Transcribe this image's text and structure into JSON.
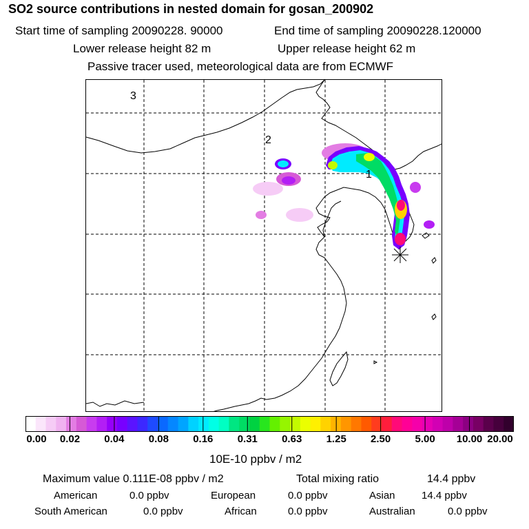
{
  "header": {
    "title": "SO2 source contributions in nested domain for gosan_200902",
    "start_label": "Start time of sampling 20090228. 90000",
    "end_label": "End time of sampling 20090228.120000",
    "lower_label": "Lower release height   82 m",
    "upper_label": "Upper release height   62 m",
    "note": "Passive tracer used, meteorological data are from ECMWF"
  },
  "map": {
    "labels": [
      "3",
      "2",
      "1"
    ]
  },
  "colorbar": {
    "ticks": [
      "0.00",
      "0.02",
      "0.04",
      "0.08",
      "0.16",
      "0.31",
      "0.63",
      "1.25",
      "2.50",
      "5.00",
      "10.00",
      "20.00"
    ],
    "colors": [
      "#ffffff",
      "#fbe6fb",
      "#f6ccf6",
      "#f0b2f0",
      "#e37de3",
      "#d65ad6",
      "#c83cef",
      "#b31ef5",
      "#9600fa",
      "#7800ff",
      "#5a14ff",
      "#3c28ff",
      "#1e4bff",
      "#0a69ff",
      "#0587ff",
      "#00a5ff",
      "#00d2ff",
      "#00ebff",
      "#00ffe6",
      "#00ffc3",
      "#00e682",
      "#00dc64",
      "#00d241",
      "#28e61e",
      "#64f000",
      "#96f500",
      "#c3fa00",
      "#ebff00",
      "#fff000",
      "#ffd200",
      "#ffb400",
      "#ff9600",
      "#ff7800",
      "#ff5a00",
      "#ff3c1e",
      "#ff1e3c",
      "#ff0a78",
      "#ff0096",
      "#f500aa",
      "#e600b4",
      "#d200b4",
      "#be00aa",
      "#a50096",
      "#8c0082",
      "#780064",
      "#5a004b",
      "#46003c",
      "#32002d"
    ],
    "unit": "10E-10 ppbv / m2"
  },
  "stats": {
    "max_label": "Maximum value  0.111E-08 ppbv / m2",
    "total_label": "Total mixing ratio",
    "total_value": "14.4 ppbv",
    "regions": [
      {
        "name": "American",
        "value": "0.0 ppbv"
      },
      {
        "name": "European",
        "value": "0.0 ppbv"
      },
      {
        "name": "Asian",
        "value": "14.4 ppbv"
      },
      {
        "name": "South American",
        "value": "0.0 ppbv"
      },
      {
        "name": "African",
        "value": "0.0 ppbv"
      },
      {
        "name": "Australian",
        "value": "0.0 ppbv"
      }
    ]
  },
  "chart_data": {
    "type": "heatmap",
    "title": "SO2 source contributions in nested domain for gosan_200902",
    "color_scale_ticks": [
      0.0,
      0.02,
      0.04,
      0.08,
      0.16,
      0.31,
      0.63,
      1.25,
      2.5,
      5.0,
      10.0,
      20.0
    ],
    "color_scale_unit": "10E-10 ppbv / m2",
    "max_value": "0.111E-08 ppbv / m2",
    "total_mixing_ratio_ppbv": 14.4,
    "receptor": "gosan",
    "grid": true,
    "domain_labels": [
      "1",
      "2",
      "3"
    ]
  }
}
